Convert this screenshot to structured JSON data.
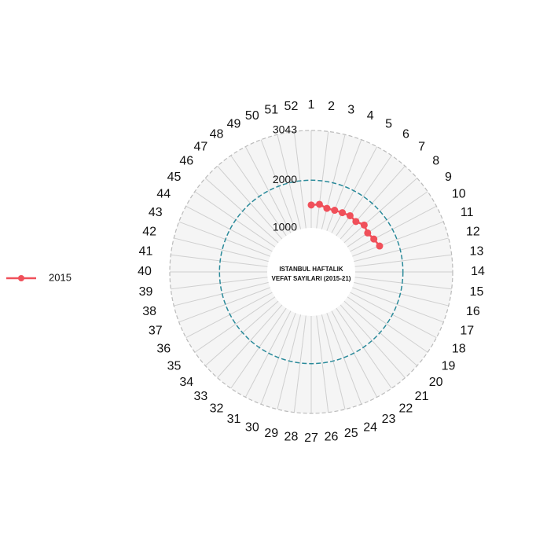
{
  "chart_data": {
    "type": "polar-line",
    "title": [
      "ISTANBUL HAFTALIK",
      "VEFAT SAYILARI (2015-21)"
    ],
    "categories": [
      "1",
      "2",
      "3",
      "4",
      "5",
      "6",
      "7",
      "8",
      "9",
      "10",
      "11",
      "12",
      "13",
      "14",
      "15",
      "16",
      "17",
      "18",
      "19",
      "20",
      "21",
      "22",
      "23",
      "24",
      "25",
      "26",
      "27",
      "28",
      "29",
      "30",
      "31",
      "32",
      "33",
      "34",
      "35",
      "36",
      "37",
      "38",
      "39",
      "40",
      "41",
      "42",
      "43",
      "44",
      "45",
      "46",
      "47",
      "48",
      "49",
      "50",
      "51",
      "52"
    ],
    "series": [
      {
        "name": "2015",
        "color": "#f0505a",
        "values": [
          1480,
          1505,
          1450,
          1460,
          1480,
          1510,
          1490,
          1560,
          1515,
          1560,
          1610,
          null,
          null,
          null,
          null,
          null,
          null,
          null,
          null,
          null,
          null,
          null,
          null,
          null,
          null,
          null,
          null,
          null,
          null,
          null,
          null,
          null,
          null,
          null,
          null,
          null,
          null,
          null,
          null,
          null,
          null,
          null,
          null,
          null,
          null,
          null,
          null,
          null,
          null,
          null,
          null,
          null
        ]
      }
    ],
    "ylim": [
      1000,
      3043
    ],
    "yticks": [
      1000,
      2000,
      3043
    ],
    "reference_circle": 2000,
    "reference_color": "#2a8a9a",
    "grid": true,
    "legend": "left"
  }
}
